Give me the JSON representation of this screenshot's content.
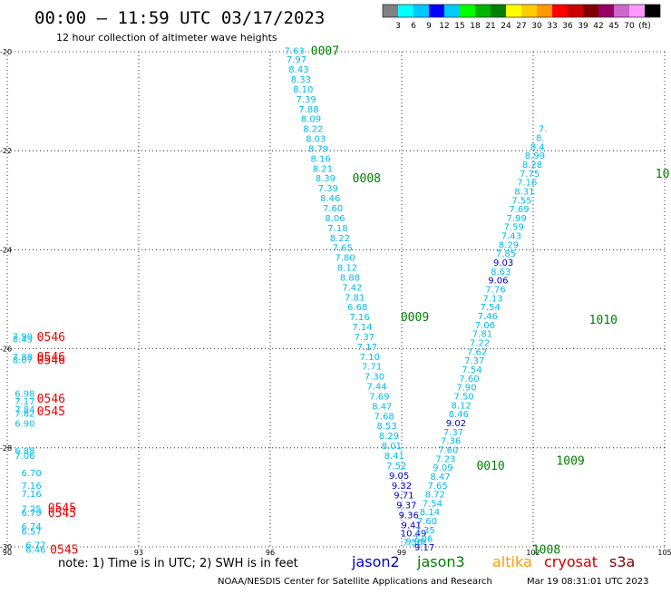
{
  "header": {
    "title": "00:00 — 11:59 UTC 03/17/2023",
    "subtitle": "12 hour collection of altimeter wave heights"
  },
  "colorbar": {
    "colors": [
      "#808080",
      "#00ffff",
      "#00c8ff",
      "#0000ff",
      "#00ccff",
      "#00ff00",
      "#00b400",
      "#008000",
      "#ffff00",
      "#ffcc00",
      "#ff9900",
      "#ff0000",
      "#cc0000",
      "#800000",
      "#990066",
      "#cc66cc",
      "#ff99ff",
      "#000000"
    ],
    "labels": [
      "3",
      "6",
      "9",
      "12",
      "15",
      "18",
      "21",
      "24",
      "27",
      "30",
      "33",
      "36",
      "39",
      "42",
      "45",
      "70",
      "(ft)"
    ]
  },
  "footer": {
    "note": "note:  1) Time is in UTC;  2) SWH is in feet",
    "satellites": [
      {
        "name": "jason2",
        "color": "#0000cc"
      },
      {
        "name": "jason3",
        "color": "#008000"
      },
      {
        "name": "altika",
        "color": "#ff9900"
      },
      {
        "name": "cryosat",
        "color": "#cc0000"
      },
      {
        "name": "s3a",
        "color": "#800000"
      }
    ],
    "credit": "NOAA/NESDIS Center for Satellite Applications and Research",
    "timestamp": "Mar 19 08:31:01 UTC 2023"
  },
  "chart_data": {
    "type": "scatter",
    "title": "12 hour collection of altimeter wave heights",
    "xlabel": "",
    "ylabel": "",
    "xlim": [
      90,
      105
    ],
    "ylim": [
      -30,
      -20
    ],
    "xticks": [
      90,
      93,
      96,
      99,
      102,
      105
    ],
    "xtick_labels": [
      "90",
      "93",
      "96",
      "99",
      "102",
      "105"
    ],
    "yticks": [
      -30,
      -28,
      -26,
      -24,
      -22,
      -20
    ],
    "ytick_labels": [
      "-30",
      "-28",
      "-26",
      "-24",
      "-22",
      "-20"
    ],
    "grid": true,
    "points": [
      {
        "x": 96.55,
        "y": -19.97,
        "v": "7.63",
        "c": "#00bbee"
      },
      {
        "x": 96.6,
        "y": -20.15,
        "v": "7.97",
        "c": "#00bbee"
      },
      {
        "x": 96.65,
        "y": -20.35,
        "v": "8.43",
        "c": "#00bbee"
      },
      {
        "x": 96.7,
        "y": -20.55,
        "v": "8.33",
        "c": "#00bbee"
      },
      {
        "x": 96.75,
        "y": -20.75,
        "v": "8.10",
        "c": "#00bbee"
      },
      {
        "x": 96.82,
        "y": -20.95,
        "v": "7.39",
        "c": "#00bbee"
      },
      {
        "x": 96.88,
        "y": -21.15,
        "v": "7.88",
        "c": "#00bbee"
      },
      {
        "x": 96.93,
        "y": -21.35,
        "v": "8.09",
        "c": "#00bbee"
      },
      {
        "x": 96.98,
        "y": -21.55,
        "v": "8.22",
        "c": "#00bbee"
      },
      {
        "x": 97.04,
        "y": -21.75,
        "v": "8.03",
        "c": "#00bbee"
      },
      {
        "x": 97.1,
        "y": -21.95,
        "v": "8.79",
        "c": "#00bbee"
      },
      {
        "x": 97.15,
        "y": -22.15,
        "v": "8.16",
        "c": "#00bbee"
      },
      {
        "x": 97.2,
        "y": -22.35,
        "v": "8.21",
        "c": "#00bbee"
      },
      {
        "x": 97.26,
        "y": -22.55,
        "v": "8.39",
        "c": "#00bbee"
      },
      {
        "x": 97.32,
        "y": -22.75,
        "v": "7.39",
        "c": "#00bbee"
      },
      {
        "x": 97.37,
        "y": -22.95,
        "v": "8.46",
        "c": "#00bbee"
      },
      {
        "x": 97.43,
        "y": -23.15,
        "v": "7.60",
        "c": "#00bbee"
      },
      {
        "x": 97.48,
        "y": -23.35,
        "v": "8.06",
        "c": "#00bbee"
      },
      {
        "x": 97.54,
        "y": -23.55,
        "v": "7.18",
        "c": "#00bbee"
      },
      {
        "x": 97.59,
        "y": -23.75,
        "v": "8.22",
        "c": "#00bbee"
      },
      {
        "x": 97.65,
        "y": -23.95,
        "v": "7.65",
        "c": "#00bbee"
      },
      {
        "x": 97.71,
        "y": -24.15,
        "v": "7.80",
        "c": "#00bbee"
      },
      {
        "x": 97.76,
        "y": -24.35,
        "v": "8.12",
        "c": "#00bbee"
      },
      {
        "x": 97.82,
        "y": -24.55,
        "v": "8.88",
        "c": "#00bbee"
      },
      {
        "x": 97.87,
        "y": -24.75,
        "v": "7.42",
        "c": "#00bbee"
      },
      {
        "x": 97.93,
        "y": -24.95,
        "v": "7.81",
        "c": "#00bbee"
      },
      {
        "x": 97.99,
        "y": -25.15,
        "v": "6.68",
        "c": "#00bbee"
      },
      {
        "x": 98.04,
        "y": -25.35,
        "v": "7.16",
        "c": "#00bbee"
      },
      {
        "x": 98.1,
        "y": -25.55,
        "v": "7.14",
        "c": "#00bbee"
      },
      {
        "x": 98.15,
        "y": -25.75,
        "v": "7.37",
        "c": "#00bbee"
      },
      {
        "x": 98.21,
        "y": -25.95,
        "v": "7.17",
        "c": "#00bbee"
      },
      {
        "x": 98.27,
        "y": -26.15,
        "v": "7.10",
        "c": "#00bbee"
      },
      {
        "x": 98.32,
        "y": -26.35,
        "v": "7.71",
        "c": "#00bbee"
      },
      {
        "x": 98.38,
        "y": -26.55,
        "v": "7.30",
        "c": "#00bbee"
      },
      {
        "x": 98.43,
        "y": -26.75,
        "v": "7.44",
        "c": "#00bbee"
      },
      {
        "x": 98.49,
        "y": -26.95,
        "v": "7.69",
        "c": "#00bbee"
      },
      {
        "x": 98.55,
        "y": -27.15,
        "v": "8.47",
        "c": "#00bbee"
      },
      {
        "x": 98.6,
        "y": -27.35,
        "v": "7.68",
        "c": "#00bbee"
      },
      {
        "x": 98.66,
        "y": -27.55,
        "v": "8.53",
        "c": "#00bbee"
      },
      {
        "x": 98.71,
        "y": -27.75,
        "v": "8.29",
        "c": "#00bbee"
      },
      {
        "x": 98.77,
        "y": -27.95,
        "v": "8.01",
        "c": "#00bbee"
      },
      {
        "x": 98.83,
        "y": -28.15,
        "v": "8.41",
        "c": "#00bbee"
      },
      {
        "x": 98.88,
        "y": -28.35,
        "v": "7.52",
        "c": "#00bbee"
      },
      {
        "x": 98.94,
        "y": -28.55,
        "v": "9.05",
        "c": "#0000cc"
      },
      {
        "x": 99.0,
        "y": -28.75,
        "v": "9.32",
        "c": "#0000cc"
      },
      {
        "x": 99.05,
        "y": -28.95,
        "v": "9.71",
        "c": "#0000cc"
      },
      {
        "x": 99.11,
        "y": -29.15,
        "v": "9.37",
        "c": "#0000cc"
      },
      {
        "x": 99.16,
        "y": -29.35,
        "v": "9.36",
        "c": "#0000cc"
      },
      {
        "x": 99.22,
        "y": -29.55,
        "v": "9.41",
        "c": "#0000cc"
      },
      {
        "x": 99.27,
        "y": -29.72,
        "v": "10.49",
        "c": "#0000cc"
      },
      {
        "x": 99.32,
        "y": -29.88,
        "v": "9.99",
        "c": "#00bbee"
      },
      {
        "x": 99.25,
        "y": -29.9,
        "v": "7.50",
        "c": "#00bbee"
      },
      {
        "x": 99.52,
        "y": -30.0,
        "v": "9.17",
        "c": "#0000cc"
      },
      {
        "x": 99.48,
        "y": -29.83,
        "v": "7.06",
        "c": "#00bbee"
      },
      {
        "x": 99.53,
        "y": -29.65,
        "v": "7.35",
        "c": "#00bbee"
      },
      {
        "x": 99.58,
        "y": -29.47,
        "v": "7.60",
        "c": "#00bbee"
      },
      {
        "x": 99.64,
        "y": -29.29,
        "v": "8.14",
        "c": "#00bbee"
      },
      {
        "x": 99.7,
        "y": -29.11,
        "v": "7.54",
        "c": "#00bbee"
      },
      {
        "x": 99.76,
        "y": -28.93,
        "v": "8.72",
        "c": "#00bbee"
      },
      {
        "x": 99.82,
        "y": -28.75,
        "v": "7.65",
        "c": "#00bbee"
      },
      {
        "x": 99.88,
        "y": -28.57,
        "v": "8.47",
        "c": "#00bbee"
      },
      {
        "x": 99.94,
        "y": -28.39,
        "v": "9.09",
        "c": "#00bbee"
      },
      {
        "x": 100.0,
        "y": -28.21,
        "v": "7.23",
        "c": "#00bbee"
      },
      {
        "x": 100.06,
        "y": -28.03,
        "v": "7.60",
        "c": "#00bbee"
      },
      {
        "x": 100.12,
        "y": -27.85,
        "v": "7.36",
        "c": "#00bbee"
      },
      {
        "x": 100.18,
        "y": -27.67,
        "v": "7.37",
        "c": "#00bbee"
      },
      {
        "x": 100.24,
        "y": -27.49,
        "v": "9.02",
        "c": "#0000cc"
      },
      {
        "x": 100.3,
        "y": -27.31,
        "v": "8.46",
        "c": "#00bbee"
      },
      {
        "x": 100.36,
        "y": -27.13,
        "v": "8.12",
        "c": "#00bbee"
      },
      {
        "x": 100.42,
        "y": -26.95,
        "v": "7.50",
        "c": "#00bbee"
      },
      {
        "x": 100.48,
        "y": -26.77,
        "v": "7.90",
        "c": "#00bbee"
      },
      {
        "x": 100.54,
        "y": -26.59,
        "v": "7.60",
        "c": "#00bbee"
      },
      {
        "x": 100.6,
        "y": -26.41,
        "v": "7.54",
        "c": "#00bbee"
      },
      {
        "x": 100.66,
        "y": -26.23,
        "v": "7.37",
        "c": "#00bbee"
      },
      {
        "x": 100.72,
        "y": -26.05,
        "v": "7.62",
        "c": "#00bbee"
      },
      {
        "x": 100.78,
        "y": -25.87,
        "v": "7.22",
        "c": "#00bbee"
      },
      {
        "x": 100.84,
        "y": -25.69,
        "v": "7.81",
        "c": "#00bbee"
      },
      {
        "x": 100.9,
        "y": -25.51,
        "v": "7.06",
        "c": "#00bbee"
      },
      {
        "x": 100.96,
        "y": -25.33,
        "v": "7.46",
        "c": "#00bbee"
      },
      {
        "x": 101.02,
        "y": -25.15,
        "v": "7.54",
        "c": "#00bbee"
      },
      {
        "x": 101.08,
        "y": -24.97,
        "v": "7.13",
        "c": "#00bbee"
      },
      {
        "x": 101.14,
        "y": -24.79,
        "v": "7.76",
        "c": "#00bbee"
      },
      {
        "x": 101.2,
        "y": -24.61,
        "v": "9.06",
        "c": "#0000cc"
      },
      {
        "x": 101.26,
        "y": -24.43,
        "v": "8.63",
        "c": "#00bbee"
      },
      {
        "x": 101.32,
        "y": -24.25,
        "v": "9.03",
        "c": "#0000cc"
      },
      {
        "x": 101.38,
        "y": -24.07,
        "v": "7.85",
        "c": "#00bbee"
      },
      {
        "x": 101.44,
        "y": -23.89,
        "v": "8.29",
        "c": "#00bbee"
      },
      {
        "x": 101.5,
        "y": -23.71,
        "v": "7.43",
        "c": "#00bbee"
      },
      {
        "x": 101.56,
        "y": -23.53,
        "v": "7.59",
        "c": "#00bbee"
      },
      {
        "x": 101.62,
        "y": -23.35,
        "v": "7.99",
        "c": "#00bbee"
      },
      {
        "x": 101.68,
        "y": -23.17,
        "v": "7.69",
        "c": "#00bbee"
      },
      {
        "x": 101.74,
        "y": -22.99,
        "v": "7.55",
        "c": "#00bbee"
      },
      {
        "x": 101.8,
        "y": -22.81,
        "v": "8.31",
        "c": "#00bbee"
      },
      {
        "x": 101.86,
        "y": -22.63,
        "v": "7.16",
        "c": "#00bbee"
      },
      {
        "x": 101.92,
        "y": -22.45,
        "v": "7.75",
        "c": "#00bbee"
      },
      {
        "x": 101.98,
        "y": -22.27,
        "v": "8.28",
        "c": "#00bbee"
      },
      {
        "x": 102.04,
        "y": -22.09,
        "v": "8.99",
        "c": "#00bbee"
      },
      {
        "x": 102.1,
        "y": -21.91,
        "v": "8.4",
        "c": "#00bbee"
      },
      {
        "x": 102.16,
        "y": -21.73,
        "v": "8.",
        "c": "#00bbee"
      },
      {
        "x": 102.22,
        "y": -21.55,
        "v": "7.",
        "c": "#00bbee"
      },
      {
        "x": 90.35,
        "y": -25.74,
        "v": "7.90",
        "c": "#00bbee"
      },
      {
        "x": 90.35,
        "y": -25.8,
        "v": "8.43",
        "c": "#00bbee"
      },
      {
        "x": 90.35,
        "y": -26.15,
        "v": "7.88",
        "c": "#00bbee"
      },
      {
        "x": 90.35,
        "y": -26.22,
        "v": "8.07",
        "c": "#00bbee"
      },
      {
        "x": 90.4,
        "y": -26.9,
        "v": "6.98",
        "c": "#00bbee"
      },
      {
        "x": 90.4,
        "y": -27.05,
        "v": "7.17",
        "c": "#00bbee"
      },
      {
        "x": 90.4,
        "y": -27.22,
        "v": "7.84",
        "c": "#00bbee"
      },
      {
        "x": 90.4,
        "y": -27.3,
        "v": "7.62",
        "c": "#00bbee"
      },
      {
        "x": 90.4,
        "y": -27.5,
        "v": "6.90",
        "c": "#00bbee"
      },
      {
        "x": 90.4,
        "y": -28.05,
        "v": "6.88",
        "c": "#00bbee"
      },
      {
        "x": 90.4,
        "y": -28.15,
        "v": "7.06",
        "c": "#00bbee"
      },
      {
        "x": 90.55,
        "y": -28.5,
        "v": "6.70",
        "c": "#00bbee"
      },
      {
        "x": 90.55,
        "y": -28.75,
        "v": "7.16",
        "c": "#00bbee"
      },
      {
        "x": 90.55,
        "y": -28.92,
        "v": "7.16",
        "c": "#00bbee"
      },
      {
        "x": 90.55,
        "y": -29.22,
        "v": "7.25",
        "c": "#00bbee"
      },
      {
        "x": 90.55,
        "y": -29.3,
        "v": "6.79",
        "c": "#00bbee"
      },
      {
        "x": 90.55,
        "y": -29.58,
        "v": "6.74",
        "c": "#00bbee"
      },
      {
        "x": 90.55,
        "y": -29.68,
        "v": "6.57",
        "c": "#00bbee"
      },
      {
        "x": 90.65,
        "y": -29.95,
        "v": "6.77",
        "c": "#00bbee"
      },
      {
        "x": 90.65,
        "y": -30.05,
        "v": "6.46",
        "c": "#00bbee"
      }
    ],
    "annotations": [
      {
        "x": 97.25,
        "y": -19.97,
        "v": "0007",
        "c": "#008000"
      },
      {
        "x": 98.2,
        "y": -22.55,
        "v": "0008",
        "c": "#008000"
      },
      {
        "x": 99.3,
        "y": -25.35,
        "v": "0009",
        "c": "#008000"
      },
      {
        "x": 101.03,
        "y": -28.35,
        "v": "0010",
        "c": "#008000"
      },
      {
        "x": 102.3,
        "y": -30.05,
        "v": "1008",
        "c": "#008000"
      },
      {
        "x": 102.85,
        "y": -28.25,
        "v": "1009",
        "c": "#008000"
      },
      {
        "x": 103.6,
        "y": -25.4,
        "v": "1010",
        "c": "#008000"
      },
      {
        "x": 104.95,
        "y": -22.45,
        "v": "10",
        "c": "#008000"
      },
      {
        "x": 91.0,
        "y": -25.75,
        "v": "0546",
        "c": "#ee0000"
      },
      {
        "x": 91.0,
        "y": -26.15,
        "v": "0546",
        "c": "#ee0000"
      },
      {
        "x": 91.0,
        "y": -26.22,
        "v": "0546",
        "c": "#ee0000"
      },
      {
        "x": 91.0,
        "y": -27.0,
        "v": "0546",
        "c": "#ee0000"
      },
      {
        "x": 91.0,
        "y": -27.25,
        "v": "0545",
        "c": "#ee0000"
      },
      {
        "x": 91.25,
        "y": -29.2,
        "v": "0545",
        "c": "#ee0000"
      },
      {
        "x": 91.25,
        "y": -29.3,
        "v": "0545",
        "c": "#ee0000"
      },
      {
        "x": 91.3,
        "y": -30.05,
        "v": "0545",
        "c": "#ee0000"
      }
    ]
  }
}
